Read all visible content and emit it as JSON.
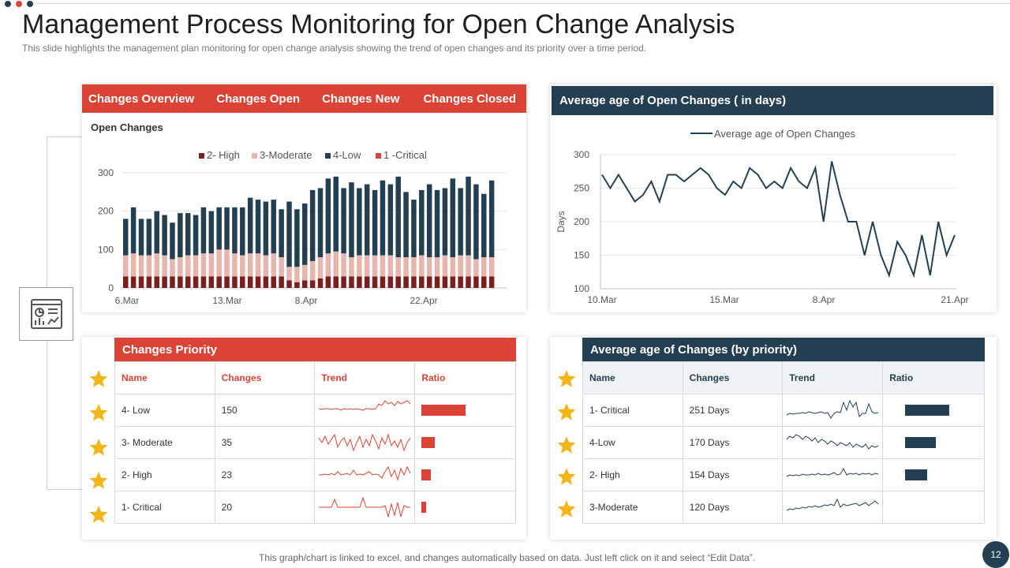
{
  "title": "Management Process Monitoring for Open Change Analysis",
  "subtitle": "This slide highlights the management plan monitoring for open change analysis showing the trend of open changes and its priority over a time period.",
  "footer": "This graph/chart is linked to excel, and changes automatically based on data. Just left click on it and select “Edit Data”.",
  "page_number": "12",
  "colors": {
    "red": "#dc4337",
    "navy": "#253f52",
    "dark_red": "#7b1e1e",
    "pink": "#e8b4ae",
    "star": "#f2b51b"
  },
  "overview_tabs": [
    "Changes Overview",
    "Changes Open",
    "Changes New",
    "Changes Closed"
  ],
  "avg_open_header": "Average age of Open Changes ( in days)",
  "chart_data": [
    {
      "type": "bar",
      "stacked": true,
      "title": "Open Changes",
      "legend": [
        "2- High",
        "3-Moderate",
        "4-Low",
        "1 -Critical"
      ],
      "x_tick_labels": [
        "6.Mar",
        "13.Mar",
        "8.Apr",
        "22.Apr"
      ],
      "y_ticks": [
        0,
        100,
        200,
        300
      ],
      "ylim": [
        0,
        300
      ],
      "series": [
        {
          "name": "2- High",
          "color": "#7b1e1e",
          "values": [
            30,
            30,
            30,
            30,
            30,
            30,
            30,
            30,
            30,
            30,
            30,
            30,
            30,
            30,
            30,
            30,
            30,
            30,
            30,
            30,
            30,
            20,
            15,
            20,
            20,
            25,
            30,
            30,
            30,
            30,
            30,
            30,
            30,
            30,
            30,
            30,
            30,
            30,
            30,
            30,
            30,
            30,
            30,
            30,
            30,
            30,
            30,
            30
          ]
        },
        {
          "name": "3-Moderate",
          "color": "#e8b4ae",
          "values": [
            55,
            60,
            55,
            55,
            60,
            55,
            45,
            50,
            55,
            55,
            60,
            60,
            70,
            70,
            60,
            55,
            60,
            60,
            55,
            60,
            50,
            35,
            40,
            40,
            50,
            55,
            60,
            65,
            60,
            50,
            55,
            55,
            55,
            55,
            55,
            50,
            50,
            50,
            55,
            50,
            50,
            55,
            50,
            55,
            55,
            45,
            50,
            50
          ]
        },
        {
          "name": "4-Low",
          "color": "#253f52",
          "values": [
            95,
            120,
            95,
            95,
            110,
            105,
            95,
            115,
            110,
            105,
            120,
            110,
            110,
            110,
            120,
            125,
            145,
            140,
            140,
            140,
            125,
            170,
            150,
            160,
            185,
            180,
            195,
            195,
            170,
            195,
            175,
            185,
            170,
            195,
            185,
            210,
            170,
            150,
            170,
            190,
            175,
            175,
            205,
            175,
            205,
            195,
            165,
            200
          ]
        },
        {
          "name": "1 -Critical",
          "color": "#dc4337",
          "values": []
        }
      ]
    },
    {
      "type": "line",
      "legend": [
        "Average age of Open Changes"
      ],
      "ylabel": "Days",
      "x_tick_labels": [
        "10.Mar",
        "15.Mar",
        "8.Apr",
        "21.Apr"
      ],
      "y_ticks": [
        100,
        150,
        200,
        250,
        300
      ],
      "ylim": [
        100,
        300
      ],
      "series": [
        {
          "name": "Average age of Open Changes",
          "values": [
            270,
            250,
            270,
            250,
            230,
            240,
            260,
            230,
            270,
            270,
            260,
            270,
            280,
            270,
            250,
            240,
            260,
            250,
            280,
            270,
            250,
            260,
            250,
            280,
            260,
            250,
            280,
            200,
            290,
            240,
            200,
            200,
            150,
            200,
            150,
            120,
            170,
            150,
            120,
            180,
            120,
            200,
            150,
            180
          ]
        }
      ]
    }
  ],
  "priority_table": {
    "header": "Changes Priority",
    "columns": [
      "Name",
      "Changes",
      "Trend",
      "Ratio"
    ],
    "rows": [
      {
        "name": "4- Low",
        "changes": "150",
        "ratio": 1.0,
        "trend": [
          12,
          13,
          12,
          12,
          13,
          12,
          12,
          14,
          12,
          13,
          12,
          13,
          12,
          13,
          14,
          12,
          12,
          13,
          12,
          6,
          8,
          2,
          6,
          4,
          8,
          3,
          6,
          4,
          2,
          6
        ]
      },
      {
        "name": "3- Moderate",
        "changes": "35",
        "ratio": 0.29,
        "trend": [
          8,
          14,
          6,
          16,
          10,
          4,
          20,
          12,
          8,
          18,
          10,
          24,
          14,
          6,
          20,
          10,
          18,
          4,
          12,
          22,
          8,
          16,
          4,
          18,
          12,
          20,
          10,
          24,
          14,
          8
        ]
      },
      {
        "name": "2- High",
        "changes": "23",
        "ratio": 0.2,
        "trend": [
          14,
          14,
          13,
          14,
          12,
          14,
          10,
          14,
          13,
          12,
          14,
          8,
          14,
          13,
          14,
          12,
          10,
          14,
          13,
          14,
          18,
          10,
          4,
          16,
          8,
          20,
          6,
          14,
          4,
          12
        ]
      },
      {
        "name": "1- Critical",
        "changes": "20",
        "ratio": 0.11,
        "trend": [
          14,
          14,
          14,
          14,
          14,
          4,
          14,
          14,
          14,
          14,
          14,
          14,
          14,
          14,
          2,
          14,
          14,
          14,
          14,
          14,
          14,
          12,
          26,
          10,
          24,
          8,
          26,
          12,
          14,
          14
        ]
      }
    ]
  },
  "age_table": {
    "header": "Average age of Changes (by priority)",
    "columns": [
      "Name",
      "Changes",
      "Trend",
      "Ratio"
    ],
    "rows": [
      {
        "name": "1- Critical",
        "changes": "251 Days",
        "ratio": 1.0,
        "trend": [
          20,
          18,
          19,
          18,
          18,
          17,
          18,
          16,
          17,
          18,
          17,
          16,
          18,
          17,
          24,
          18,
          16,
          17,
          4,
          14,
          2,
          10,
          4,
          22,
          18,
          18,
          6,
          16,
          18,
          17
        ]
      },
      {
        "name": "4-Low",
        "changes": "170 Days",
        "ratio": 0.7,
        "trend": [
          10,
          6,
          8,
          4,
          6,
          10,
          6,
          8,
          12,
          8,
          14,
          10,
          12,
          16,
          12,
          14,
          18,
          14,
          16,
          18,
          14,
          20,
          16,
          18,
          20,
          16,
          22,
          18,
          20,
          18
        ]
      },
      {
        "name": "2- High",
        "changes": "154 Days",
        "ratio": 0.5,
        "trend": [
          16,
          14,
          15,
          14,
          15,
          13,
          14,
          14,
          13,
          14,
          12,
          14,
          13,
          14,
          13,
          11,
          14,
          13,
          6,
          14,
          12,
          13,
          12,
          14,
          12,
          13,
          12,
          14,
          12,
          13
        ]
      },
      {
        "name": "3-Moderate",
        "changes": "120 Days",
        "ratio": 0.0,
        "trend": [
          18,
          16,
          17,
          15,
          16,
          14,
          15,
          13,
          14,
          12,
          14,
          13,
          11,
          12,
          10,
          12,
          4,
          14,
          10,
          12,
          11,
          10,
          9,
          12,
          10,
          8,
          12,
          9,
          6,
          10
        ]
      }
    ]
  }
}
